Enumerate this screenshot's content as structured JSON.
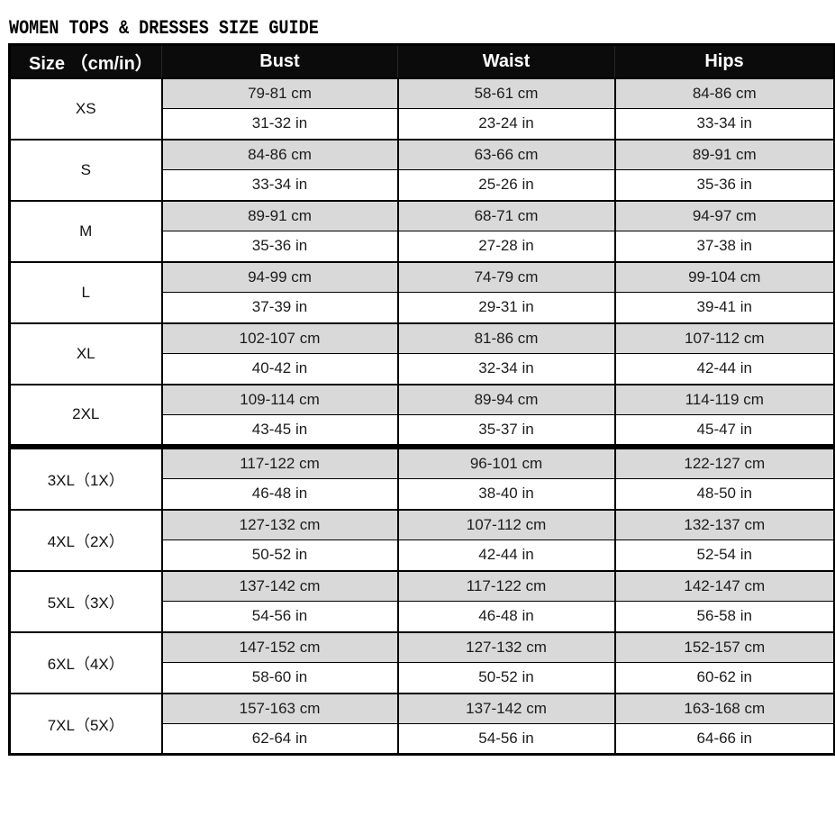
{
  "title": "WOMEN TOPS & DRESSES SIZE GUIDE",
  "theme": {
    "header_bg": "#0b0b0b",
    "header_text": "#ffffff",
    "stripe_bg": "#d9d9d9",
    "border_color": "#000000",
    "text_color": "#1c1c1c",
    "page_bg": "#ffffff"
  },
  "table": {
    "headers": [
      "Size （cm/in）",
      "Bust",
      "Waist",
      "Hips"
    ],
    "units": [
      "cm",
      "in"
    ],
    "sections": [
      {
        "rows": [
          {
            "size": "XS",
            "bust_cm": "79-81 cm",
            "bust_in": "31-32 in",
            "waist_cm": "58-61 cm",
            "waist_in": "23-24 in",
            "hips_cm": "84-86 cm",
            "hips_in": "33-34 in"
          },
          {
            "size": "S",
            "bust_cm": "84-86 cm",
            "bust_in": "33-34 in",
            "waist_cm": "63-66 cm",
            "waist_in": "25-26 in",
            "hips_cm": "89-91 cm",
            "hips_in": "35-36 in"
          },
          {
            "size": "M",
            "bust_cm": "89-91 cm",
            "bust_in": "35-36 in",
            "waist_cm": "68-71 cm",
            "waist_in": "27-28 in",
            "hips_cm": "94-97 cm",
            "hips_in": "37-38 in"
          },
          {
            "size": "L",
            "bust_cm": "94-99 cm",
            "bust_in": "37-39 in",
            "waist_cm": "74-79 cm",
            "waist_in": "29-31 in",
            "hips_cm": "99-104 cm",
            "hips_in": "39-41 in"
          },
          {
            "size": "XL",
            "bust_cm": "102-107 cm",
            "bust_in": "40-42 in",
            "waist_cm": "81-86 cm",
            "waist_in": "32-34 in",
            "hips_cm": "107-112 cm",
            "hips_in": "42-44 in"
          },
          {
            "size": "2XL",
            "bust_cm": "109-114 cm",
            "bust_in": "43-45 in",
            "waist_cm": "89-94 cm",
            "waist_in": "35-37 in",
            "hips_cm": "114-119 cm",
            "hips_in": "45-47 in"
          }
        ]
      },
      {
        "rows": [
          {
            "size": "3XL（1X）",
            "bust_cm": "117-122 cm",
            "bust_in": "46-48 in",
            "waist_cm": "96-101 cm",
            "waist_in": "38-40 in",
            "hips_cm": "122-127 cm",
            "hips_in": "48-50 in"
          },
          {
            "size": "4XL（2X）",
            "bust_cm": "127-132 cm",
            "bust_in": "50-52 in",
            "waist_cm": "107-112 cm",
            "waist_in": "42-44 in",
            "hips_cm": "132-137 cm",
            "hips_in": "52-54 in"
          },
          {
            "size": "5XL（3X）",
            "bust_cm": "137-142 cm",
            "bust_in": "54-56 in",
            "waist_cm": "117-122 cm",
            "waist_in": "46-48 in",
            "hips_cm": "142-147 cm",
            "hips_in": "56-58 in"
          },
          {
            "size": "6XL（4X）",
            "bust_cm": "147-152 cm",
            "bust_in": "58-60 in",
            "waist_cm": "127-132 cm",
            "waist_in": "50-52 in",
            "hips_cm": "152-157 cm",
            "hips_in": "60-62 in"
          },
          {
            "size": "7XL（5X）",
            "bust_cm": "157-163 cm",
            "bust_in": "62-64 in",
            "waist_cm": "137-142 cm",
            "waist_in": "54-56 in",
            "hips_cm": "163-168 cm",
            "hips_in": "64-66 in"
          }
        ]
      }
    ]
  }
}
